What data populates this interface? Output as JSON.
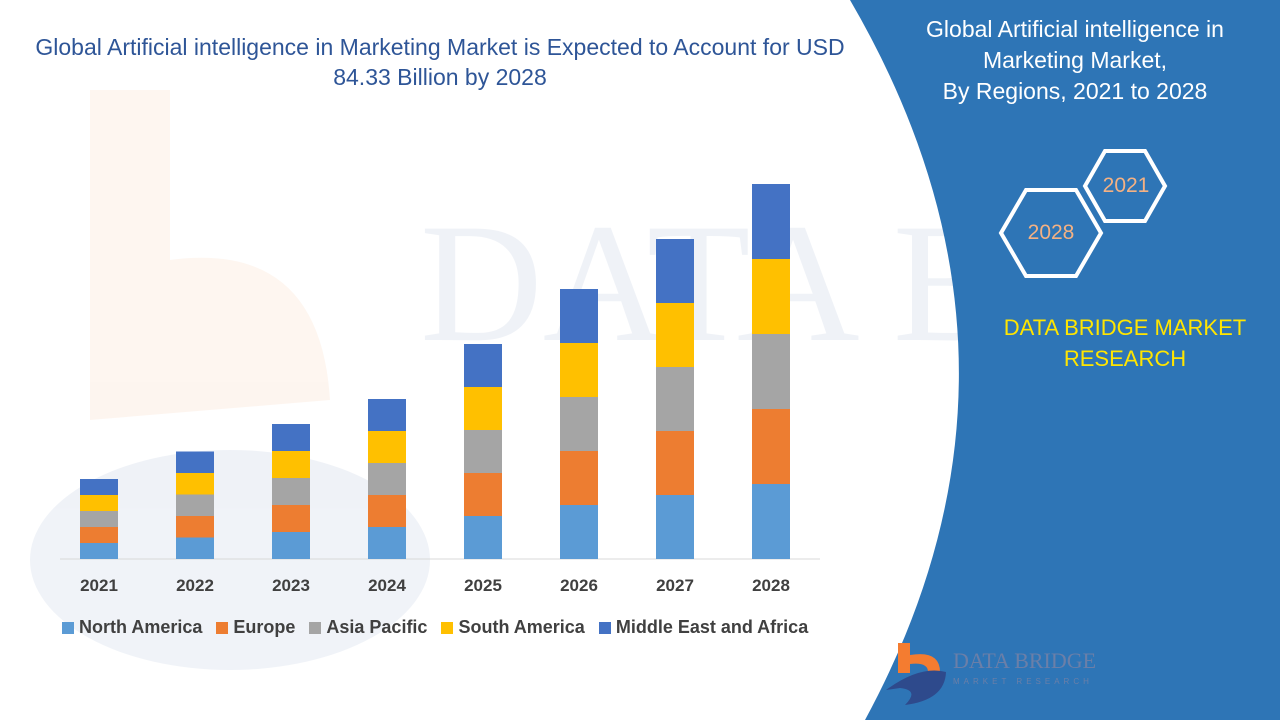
{
  "title": "Global Artificial intelligence in Marketing Market is Expected to Account for USD 84.33 Billion by 2028",
  "side_panel": {
    "title_lines": [
      "Global Artificial intelligence in",
      "Marketing Market,",
      "By Regions, 2021 to 2028"
    ],
    "hex_start": "2021",
    "hex_end": "2028",
    "brand_lines": [
      "DATA BRIDGE MARKET",
      "RESEARCH"
    ],
    "logo_text": "DATA BRIDGE",
    "logo_subtext": "MARKET RESEARCH",
    "panel_color": "#2e75b6",
    "brand_color": "#ffe500"
  },
  "watermark": "DATA BRIDGE MARKET RESEARCH",
  "chart_data": {
    "type": "bar",
    "stacked": true,
    "categories": [
      "2021",
      "2022",
      "2023",
      "2024",
      "2025",
      "2026",
      "2027",
      "2028"
    ],
    "series": [
      {
        "name": "North America",
        "color": "#5b9bd5",
        "values": [
          16,
          21.5,
          27,
          32,
          43,
          54,
          64,
          75
        ]
      },
      {
        "name": "Europe",
        "color": "#ed7d31",
        "values": [
          16,
          21.5,
          27,
          32,
          43,
          54,
          64,
          75
        ]
      },
      {
        "name": "Asia Pacific",
        "color": "#a5a5a5",
        "values": [
          16,
          21.5,
          27,
          32,
          43,
          54,
          64,
          75
        ]
      },
      {
        "name": "South America",
        "color": "#ffc000",
        "values": [
          16,
          21.5,
          27,
          32,
          43,
          54,
          64,
          75
        ]
      },
      {
        "name": "Middle East and Africa",
        "color": "#4472c4",
        "values": [
          16,
          21.5,
          27,
          32,
          43,
          54,
          64,
          75
        ]
      }
    ],
    "title": "",
    "xlabel": "",
    "ylabel": "",
    "ylim": [
      0,
      375
    ],
    "y_axis_shown": false,
    "grid": false,
    "legend": "bottom"
  }
}
